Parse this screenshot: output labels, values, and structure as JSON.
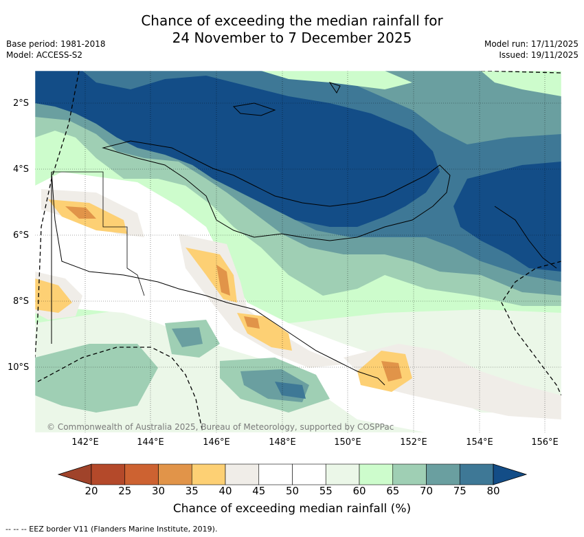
{
  "header": {
    "title_line1": "Chance of exceeding the median rainfall for",
    "title_line2": "24 November to 7 December 2025",
    "base_period": "Base period: 1981-2018",
    "model": "Model: ACCESS-S2",
    "model_run": "Model run: 17/11/2025",
    "issued": "Issued: 19/11/2025"
  },
  "map": {
    "lat_labels": [
      "2°S",
      "4°S",
      "6°S",
      "8°S",
      "10°S"
    ],
    "lon_labels": [
      "142°E",
      "144°E",
      "146°E",
      "148°E",
      "150°E",
      "152°E",
      "154°E",
      "156°E"
    ],
    "copyright": "© Commonwealth of Australia 2025, Bureau of Meteorology, supported by COSPPac"
  },
  "colorbar": {
    "ticks": [
      "20",
      "25",
      "30",
      "35",
      "40",
      "45",
      "50",
      "55",
      "60",
      "65",
      "70",
      "75",
      "80"
    ],
    "colors": [
      "#b4492a",
      "#cd6231",
      "#e19449",
      "#fdd074",
      "#f0ede8",
      "#ffffff",
      "#ffffff",
      "#ebf7e8",
      "#cdfccc",
      "#9fcfb4",
      "#6a9fa0",
      "#3e7896"
    ],
    "under_color": "#a0432a",
    "over_color": "#134d87",
    "label": "Chance of exceeding median rainfall (%)"
  },
  "footnote": "--  --  -- EEZ border V11 (Flanders Marine Institute, 2019)."
}
